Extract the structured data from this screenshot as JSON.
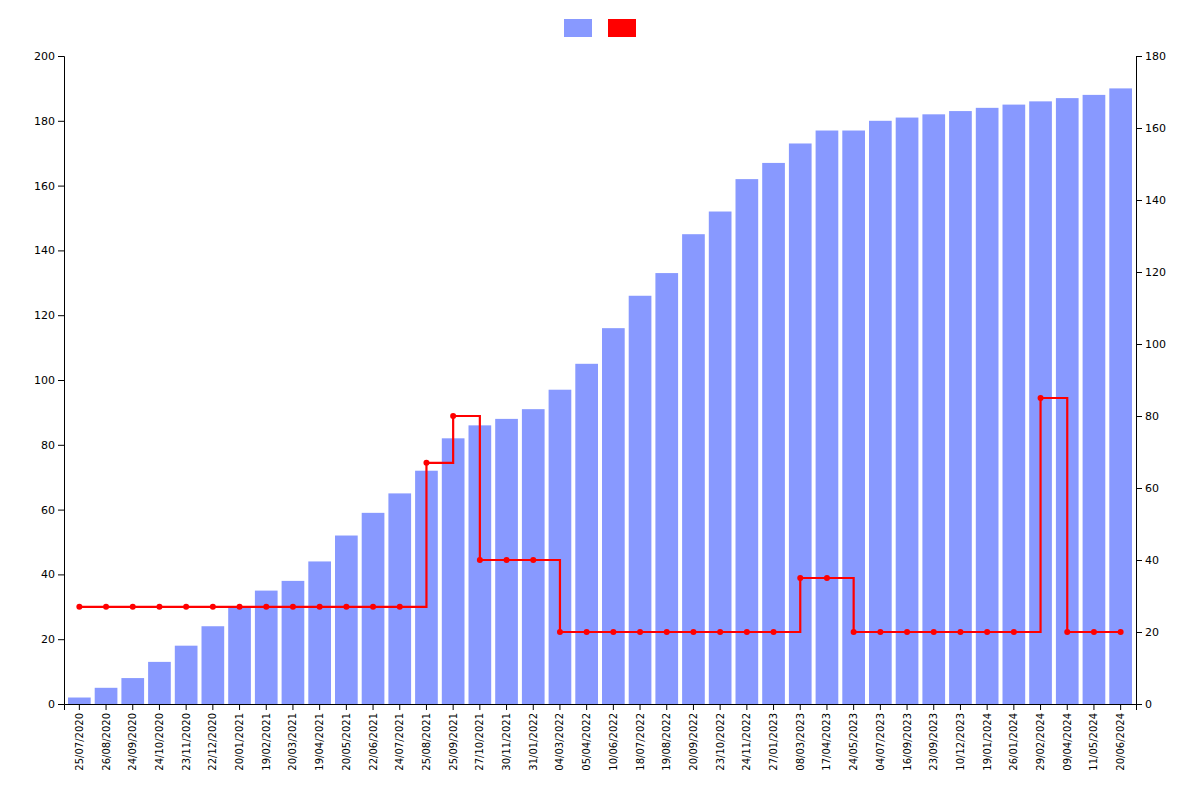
{
  "chart_data": {
    "type": "bar",
    "categories": [
      "25/07/2020",
      "26/08/2020",
      "24/09/2020",
      "24/10/2020",
      "23/11/2020",
      "22/12/2020",
      "20/01/2021",
      "19/02/2021",
      "20/03/2021",
      "19/04/2021",
      "20/05/2021",
      "22/06/2021",
      "24/07/2021",
      "25/08/2021",
      "25/09/2021",
      "27/10/2021",
      "30/11/2021",
      "31/01/2022",
      "04/03/2022",
      "05/04/2022",
      "10/06/2022",
      "18/07/2022",
      "19/08/2022",
      "20/09/2022",
      "23/10/2022",
      "24/11/2022",
      "27/01/2023",
      "08/03/2023",
      "17/04/2023",
      "24/05/2023",
      "04/07/2023",
      "16/09/2023",
      "23/09/2023",
      "10/12/2023",
      "19/01/2024",
      "26/01/2024",
      "29/02/2024",
      "09/04/2024",
      "11/05/2024",
      "20/06/2024"
    ],
    "ylim": [
      0,
      200
    ],
    "yticks": [
      0,
      20,
      40,
      60,
      80,
      100,
      120,
      140,
      160,
      180,
      200
    ],
    "y2lim": [
      0,
      180
    ],
    "y2ticks": [
      0,
      20,
      40,
      60,
      80,
      100,
      120,
      140,
      160,
      180
    ],
    "grid": false,
    "legend": "top",
    "series": [
      {
        "type": "bar",
        "color": "#8899ff",
        "values": [
          2,
          5,
          8,
          13,
          18,
          24,
          30,
          35,
          38,
          44,
          52,
          59,
          65,
          72,
          82,
          86,
          88,
          91,
          97,
          105,
          116,
          126,
          133,
          145,
          152,
          162,
          167,
          173,
          177,
          177,
          180,
          181,
          182,
          183,
          184,
          185,
          186,
          187,
          188,
          190
        ]
      },
      {
        "type": "line",
        "axis": "y2",
        "color": "#ff0000",
        "line_style": "step",
        "marker": "circle",
        "values": [
          27,
          27,
          27,
          27,
          27,
          27,
          27,
          27,
          27,
          27,
          27,
          27,
          27,
          67,
          80,
          40,
          40,
          40,
          20,
          20,
          20,
          20,
          20,
          20,
          20,
          20,
          20,
          35,
          35,
          20,
          20,
          20,
          20,
          20,
          20,
          20,
          85,
          20,
          20,
          20
        ]
      }
    ]
  }
}
